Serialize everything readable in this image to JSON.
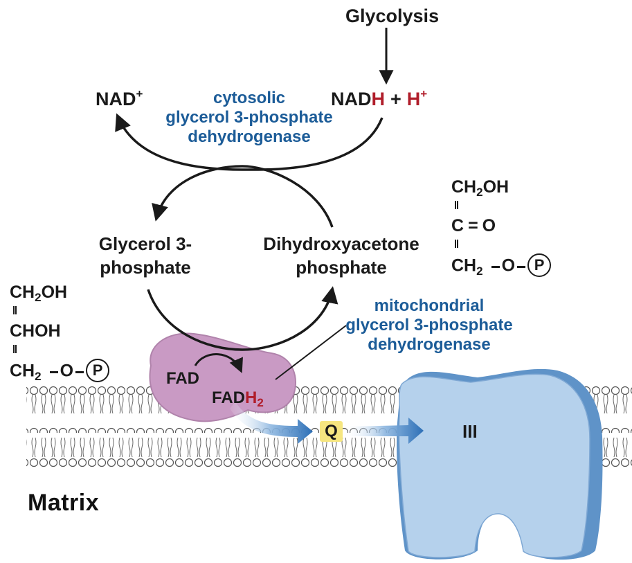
{
  "top": {
    "glycolysis": "Glycolysis",
    "nad": "NAD",
    "nad_sup": "+",
    "nadh_base": "NAD",
    "nadh_h": "H",
    "plus": "+",
    "h": "H",
    "h_sup": "+"
  },
  "cytosolic_enzyme": {
    "line1": "cytosolic",
    "line2": "glycerol 3-phosphate",
    "line3": "dehydrogenase"
  },
  "glycerol3p": {
    "line1": "Glycerol 3-",
    "line2": "phosphate"
  },
  "dhap": {
    "line1": "Dihydroxyacetone",
    "line2": "phosphate"
  },
  "dhap_structure": {
    "row1_a": "CH",
    "row1_sub": "2",
    "row1_b": "OH",
    "row2_a": "C",
    "row2_eq": "=",
    "row2_b": "O",
    "row3_a": "CH",
    "row3_sub": "2",
    "row3_o": "O",
    "row3_p": "P"
  },
  "g3p_structure": {
    "row1_a": "CH",
    "row1_sub": "2",
    "row1_b": "OH",
    "row2": "CHOH",
    "row3_a": "CH",
    "row3_sub": "2",
    "row3_o": "O",
    "row3_p": "P"
  },
  "mito_enzyme": {
    "line1": "mitochondrial",
    "line2": "glycerol 3-phosphate",
    "line3": "dehydrogenase"
  },
  "fad": "FAD",
  "fadh2": {
    "base": "FAD",
    "h": "H",
    "sub": "2"
  },
  "q": "Q",
  "complex": "III",
  "matrix": "Matrix",
  "colors": {
    "blue_text": "#1c5c98",
    "red_text": "#b01d2a",
    "enzyme_purple": "#c99ac4",
    "complex_blue": "#a8c8e8",
    "complex_edge": "#5f93c8",
    "q_yellow": "#f6e680"
  }
}
